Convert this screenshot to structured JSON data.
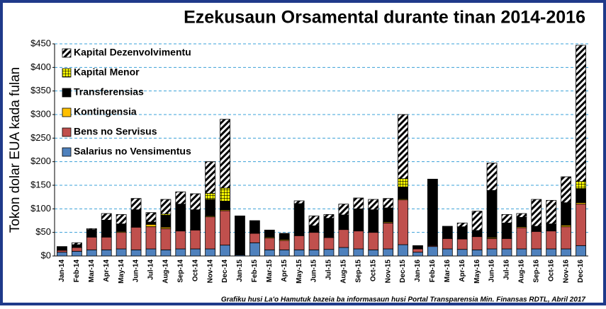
{
  "chart_data": {
    "type": "stacked_bar",
    "title": "Ezekusaun Orsamental durante tinan 2014-2016",
    "ylabel": "Tokon dolar EUA kada fulan",
    "footnote": "Grafiku husi La'o Hamutuk bazeia ba informasaun husi Portal Transparensia Min. Finansas RDTL, Abril 2017",
    "categories": [
      "Jan-14",
      "Feb-14",
      "Mar-14",
      "Apr-14",
      "May-14",
      "Jun-14",
      "Jul-14",
      "Aug-14",
      "Sep-14",
      "Oct-14",
      "Nov-14",
      "Dec-14",
      "Jan-15",
      "Feb-15",
      "Mar-15",
      "Apr-15",
      "May-15",
      "Jun-15",
      "Jul-15",
      "Aug-15",
      "Sep-15",
      "Oct-15",
      "Nov-15",
      "Dec-15",
      "Jan-16",
      "Feb-16",
      "Mar-16",
      "Apr-16",
      "May-16",
      "Jun-16",
      "Jul-16",
      "Aug-16",
      "Sep-16",
      "Oct-16",
      "Nov-16",
      "Dec-16"
    ],
    "series": [
      {
        "name": "Salarius no Vensimentus",
        "color": "#4f81bd",
        "values": [
          8,
          10,
          13,
          13,
          15,
          13,
          15,
          13,
          15,
          15,
          15,
          23,
          2,
          28,
          13,
          13,
          13,
          13,
          14,
          18,
          15,
          13,
          15,
          24,
          8,
          20,
          15,
          14,
          13,
          15,
          15,
          15,
          15,
          15,
          15,
          22
        ]
      },
      {
        "name": "Bens no Servisus",
        "color": "#c0504d",
        "values": [
          4,
          8,
          27,
          27,
          35,
          48,
          47,
          45,
          38,
          40,
          68,
          73,
          0,
          20,
          25,
          20,
          30,
          37,
          25,
          38,
          38,
          37,
          55,
          95,
          7,
          2,
          22,
          22,
          28,
          22,
          22,
          45,
          37,
          38,
          47,
          88
        ]
      },
      {
        "name": "Kontingensia",
        "color": "#ffc000",
        "values": [
          0,
          0,
          1,
          1,
          2,
          1,
          5,
          3,
          1,
          1,
          2,
          2,
          0,
          0,
          2,
          2,
          0,
          1,
          1,
          1,
          1,
          1,
          2,
          2,
          0,
          0,
          0,
          0,
          1,
          2,
          0,
          2,
          1,
          1,
          3,
          3
        ]
      },
      {
        "name": "Transferensias",
        "color": "#000000",
        "values": [
          8,
          6,
          15,
          35,
          16,
          36,
          5,
          25,
          56,
          42,
          35,
          18,
          83,
          27,
          15,
          13,
          68,
          13,
          40,
          30,
          46,
          47,
          30,
          25,
          7,
          141,
          26,
          26,
          12,
          100,
          33,
          20,
          10,
          14,
          48,
          30
        ]
      },
      {
        "name": "Kapital Menor",
        "color": "#ffff00",
        "values": [
          0,
          0,
          0,
          0,
          0,
          0,
          0,
          3,
          0,
          0,
          13,
          28,
          0,
          0,
          0,
          0,
          0,
          0,
          0,
          0,
          0,
          0,
          0,
          18,
          0,
          0,
          0,
          0,
          0,
          0,
          0,
          0,
          0,
          0,
          0,
          15
        ]
      },
      {
        "name": "Kapital Dezenvolvimentu",
        "color": "#ffffff",
        "values": [
          0,
          4,
          2,
          14,
          20,
          24,
          20,
          31,
          26,
          34,
          67,
          146,
          0,
          0,
          0,
          0,
          6,
          21,
          8,
          23,
          23,
          22,
          20,
          136,
          0,
          0,
          0,
          8,
          41,
          58,
          18,
          8,
          57,
          50,
          55,
          289
        ]
      }
    ],
    "ylim": [
      0,
      450
    ],
    "yticks": [
      {
        "value": 0,
        "label": "$0"
      },
      {
        "value": 50,
        "label": "$50"
      },
      {
        "value": 100,
        "label": "$100"
      },
      {
        "value": 150,
        "label": "$150"
      },
      {
        "value": 200,
        "label": "$200"
      },
      {
        "value": 250,
        "label": "$250"
      },
      {
        "value": 300,
        "label": "$300"
      },
      {
        "value": 350,
        "label": "$350"
      },
      {
        "value": 400,
        "label": "$400"
      },
      {
        "value": 450,
        "label": "$450"
      }
    ],
    "grid": true
  }
}
